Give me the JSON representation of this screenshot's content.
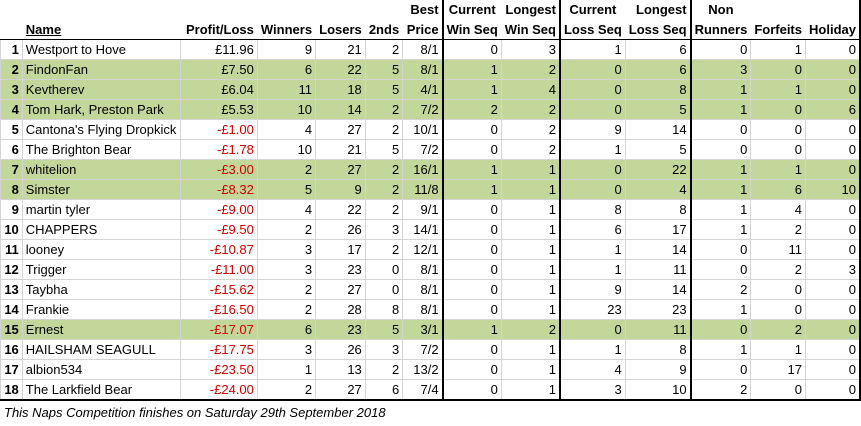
{
  "headers": {
    "top": [
      "",
      "",
      "",
      "",
      "",
      "",
      "Best",
      "Current",
      "Longest",
      "Current",
      "Longest",
      "Non",
      "",
      ""
    ],
    "bottom": [
      "",
      "Name",
      "Profit/Loss",
      "Winners",
      "Losers",
      "2nds",
      "Price",
      "Win Seq",
      "Win Seq",
      "Loss Seq",
      "Loss Seq",
      "Runners",
      "Forfeits",
      "Holiday"
    ]
  },
  "rows": [
    {
      "rank": "1",
      "name": "Westport to Hove",
      "pl": "£11.96",
      "neg": false,
      "green": false,
      "winners": "9",
      "losers": "21",
      "seconds": "2",
      "price": "8/1",
      "cws": "0",
      "lws": "3",
      "cls": "1",
      "lls": "6",
      "nr": "0",
      "forfeits": "1",
      "holiday": "0"
    },
    {
      "rank": "2",
      "name": "FindonFan",
      "pl": "£7.50",
      "neg": false,
      "green": true,
      "winners": "6",
      "losers": "22",
      "seconds": "5",
      "price": "8/1",
      "cws": "1",
      "lws": "2",
      "cls": "0",
      "lls": "6",
      "nr": "3",
      "forfeits": "0",
      "holiday": "0"
    },
    {
      "rank": "3",
      "name": "Kevtherev",
      "pl": "£6.04",
      "neg": false,
      "green": true,
      "winners": "11",
      "losers": "18",
      "seconds": "5",
      "price": "4/1",
      "cws": "1",
      "lws": "4",
      "cls": "0",
      "lls": "8",
      "nr": "1",
      "forfeits": "1",
      "holiday": "0"
    },
    {
      "rank": "4",
      "name": "Tom Hark, Preston Park",
      "pl": "£5.53",
      "neg": false,
      "green": true,
      "winners": "10",
      "losers": "14",
      "seconds": "2",
      "price": "7/2",
      "cws": "2",
      "lws": "2",
      "cls": "0",
      "lls": "5",
      "nr": "1",
      "forfeits": "0",
      "holiday": "6"
    },
    {
      "rank": "5",
      "name": "Cantona's Flying Dropkick",
      "pl": "-£1.00",
      "neg": true,
      "green": false,
      "winners": "4",
      "losers": "27",
      "seconds": "2",
      "price": "10/1",
      "cws": "0",
      "lws": "2",
      "cls": "9",
      "lls": "14",
      "nr": "0",
      "forfeits": "0",
      "holiday": "0"
    },
    {
      "rank": "6",
      "name": "The Brighton Bear",
      "pl": "-£1.78",
      "neg": true,
      "green": false,
      "winners": "10",
      "losers": "21",
      "seconds": "5",
      "price": "7/2",
      "cws": "0",
      "lws": "2",
      "cls": "1",
      "lls": "5",
      "nr": "0",
      "forfeits": "0",
      "holiday": "0"
    },
    {
      "rank": "7",
      "name": "whitelion",
      "pl": "-£3.00",
      "neg": true,
      "green": true,
      "winners": "2",
      "losers": "27",
      "seconds": "2",
      "price": "16/1",
      "cws": "1",
      "lws": "1",
      "cls": "0",
      "lls": "22",
      "nr": "1",
      "forfeits": "1",
      "holiday": "0"
    },
    {
      "rank": "8",
      "name": "Simster",
      "pl": "-£8.32",
      "neg": true,
      "green": true,
      "winners": "5",
      "losers": "9",
      "seconds": "2",
      "price": "11/8",
      "cws": "1",
      "lws": "1",
      "cls": "0",
      "lls": "4",
      "nr": "1",
      "forfeits": "6",
      "holiday": "10"
    },
    {
      "rank": "9",
      "name": "martin tyler",
      "pl": "-£9.00",
      "neg": true,
      "green": false,
      "winners": "4",
      "losers": "22",
      "seconds": "2",
      "price": "9/1",
      "cws": "0",
      "lws": "1",
      "cls": "8",
      "lls": "8",
      "nr": "1",
      "forfeits": "4",
      "holiday": "0"
    },
    {
      "rank": "10",
      "name": "CHAPPERS",
      "pl": "-£9.50",
      "neg": true,
      "green": false,
      "winners": "2",
      "losers": "26",
      "seconds": "3",
      "price": "14/1",
      "cws": "0",
      "lws": "1",
      "cls": "6",
      "lls": "17",
      "nr": "1",
      "forfeits": "2",
      "holiday": "0"
    },
    {
      "rank": "11",
      "name": "looney",
      "pl": "-£10.87",
      "neg": true,
      "green": false,
      "winners": "3",
      "losers": "17",
      "seconds": "2",
      "price": "12/1",
      "cws": "0",
      "lws": "1",
      "cls": "1",
      "lls": "14",
      "nr": "0",
      "forfeits": "11",
      "holiday": "0"
    },
    {
      "rank": "12",
      "name": "Trigger",
      "pl": "-£11.00",
      "neg": true,
      "green": false,
      "winners": "3",
      "losers": "23",
      "seconds": "0",
      "price": "8/1",
      "cws": "0",
      "lws": "1",
      "cls": "1",
      "lls": "11",
      "nr": "0",
      "forfeits": "2",
      "holiday": "3"
    },
    {
      "rank": "13",
      "name": "Taybha",
      "pl": "-£15.62",
      "neg": true,
      "green": false,
      "winners": "2",
      "losers": "27",
      "seconds": "0",
      "price": "8/1",
      "cws": "0",
      "lws": "1",
      "cls": "9",
      "lls": "14",
      "nr": "2",
      "forfeits": "0",
      "holiday": "0"
    },
    {
      "rank": "14",
      "name": "Frankie",
      "pl": "-£16.50",
      "neg": true,
      "green": false,
      "winners": "2",
      "losers": "28",
      "seconds": "8",
      "price": "8/1",
      "cws": "0",
      "lws": "1",
      "cls": "23",
      "lls": "23",
      "nr": "1",
      "forfeits": "0",
      "holiday": "0"
    },
    {
      "rank": "15",
      "name": "Ernest",
      "pl": "-£17.07",
      "neg": true,
      "green": true,
      "winners": "6",
      "losers": "23",
      "seconds": "5",
      "price": "3/1",
      "cws": "1",
      "lws": "2",
      "cls": "0",
      "lls": "11",
      "nr": "0",
      "forfeits": "2",
      "holiday": "0"
    },
    {
      "rank": "16",
      "name": "HAILSHAM SEAGULL",
      "pl": "-£17.75",
      "neg": true,
      "green": false,
      "winners": "3",
      "losers": "26",
      "seconds": "3",
      "price": "7/2",
      "cws": "0",
      "lws": "1",
      "cls": "1",
      "lls": "8",
      "nr": "1",
      "forfeits": "1",
      "holiday": "0"
    },
    {
      "rank": "17",
      "name": "albion534",
      "pl": "-£23.50",
      "neg": true,
      "green": false,
      "winners": "1",
      "losers": "13",
      "seconds": "2",
      "price": "13/2",
      "cws": "0",
      "lws": "1",
      "cls": "4",
      "lls": "9",
      "nr": "0",
      "forfeits": "17",
      "holiday": "0"
    },
    {
      "rank": "18",
      "name": "The Larkfield Bear",
      "pl": "-£24.00",
      "neg": true,
      "green": false,
      "winners": "2",
      "losers": "27",
      "seconds": "6",
      "price": "7/4",
      "cws": "0",
      "lws": "1",
      "cls": "3",
      "lls": "10",
      "nr": "2",
      "forfeits": "0",
      "holiday": "0"
    }
  ],
  "footnote": "This Naps Competition finishes on Saturday 29th September 2018",
  "colors": {
    "highlight": "#c4d79b",
    "negative": "#d00000",
    "gridline": "#d4d4d4"
  }
}
